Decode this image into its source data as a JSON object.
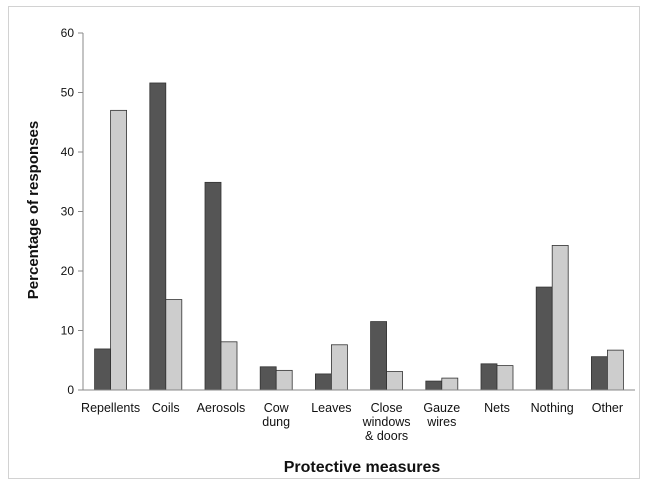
{
  "chart_data": {
    "type": "bar",
    "categories": [
      [
        "Repellents"
      ],
      [
        "Coils"
      ],
      [
        "Aerosols"
      ],
      [
        "Cow",
        "dung"
      ],
      [
        "Leaves"
      ],
      [
        "Close",
        "windows",
        "& doors"
      ],
      [
        "Gauze",
        "wires"
      ],
      [
        "Nets"
      ],
      [
        "Nothing"
      ],
      [
        "Other"
      ]
    ],
    "series": [
      {
        "values": [
          6.9,
          51.6,
          34.9,
          3.9,
          2.7,
          11.5,
          1.5,
          4.4,
          17.3,
          5.6
        ],
        "color": "#555555"
      },
      {
        "values": [
          47.0,
          15.2,
          8.1,
          3.3,
          7.6,
          3.1,
          2.0,
          4.1,
          24.3,
          6.7
        ],
        "color": "#cdcdcd"
      }
    ],
    "title": "",
    "xlabel": "Protective measures",
    "ylabel": "Percentage of responses",
    "ylim": [
      0,
      60
    ],
    "yticks": [
      0,
      10,
      20,
      30,
      40,
      50,
      60
    ],
    "grid": false,
    "legend": "none"
  }
}
